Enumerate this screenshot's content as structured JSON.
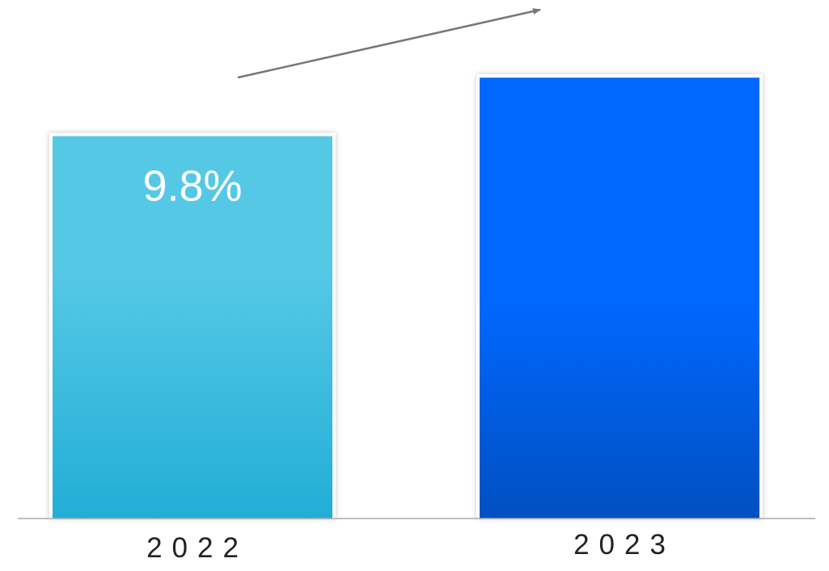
{
  "chart_data": {
    "type": "bar",
    "categories": [
      "2022",
      "2023"
    ],
    "values": [
      9.8,
      11.3
    ],
    "data_labels": [
      "9.8%",
      ""
    ],
    "ylim": [
      0,
      11.8
    ],
    "grid": false,
    "legend": "none",
    "trend_arrow": true,
    "colors": {
      "bar_2022_top": "#55c8e6",
      "bar_2022_bottom": "#22aed6",
      "bar_2023_top": "#0068ff",
      "bar_2023_bottom": "#0050c0",
      "axis": "#aaaaaa",
      "arrow": "#777777"
    }
  }
}
